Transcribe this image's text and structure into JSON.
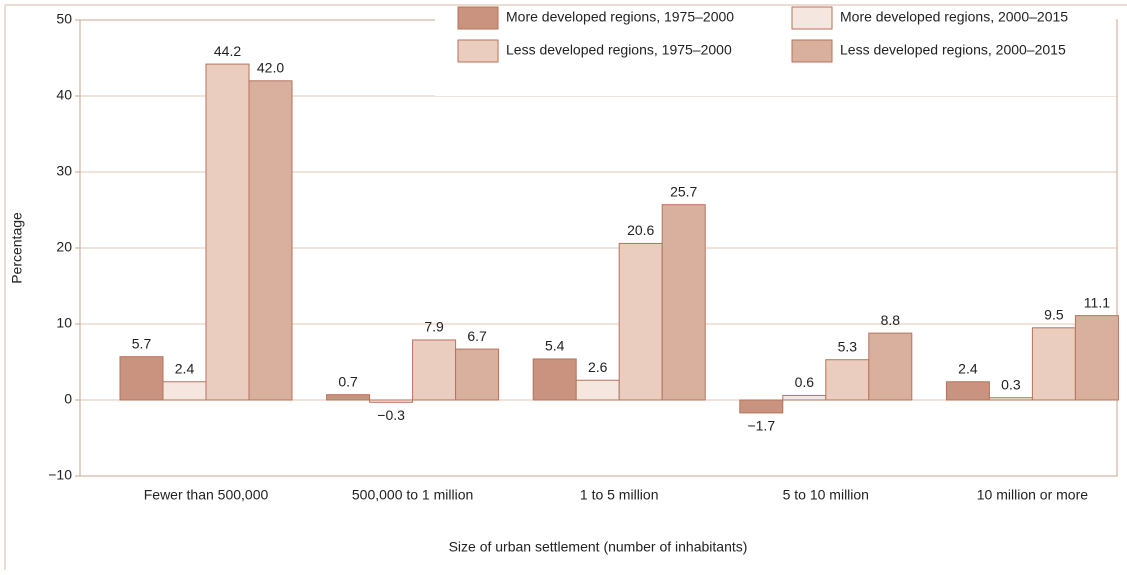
{
  "chart_data": {
    "type": "bar",
    "ylabel": "Percentage",
    "xlabel": "Size of urban settlement (number of inhabitants)",
    "categories": [
      "Fewer than 500,000",
      "500,000 to 1 million",
      "1 to 5 million",
      "5 to 10 million",
      "10 million or more"
    ],
    "series": [
      {
        "name": "More developed regions, 1975–2000",
        "color": "#c9937f",
        "values": [
          5.7,
          0.7,
          5.4,
          -1.7,
          2.4
        ],
        "value_labels": [
          "5.7",
          "0.7",
          "5.4",
          "−1.7",
          "2.4"
        ]
      },
      {
        "name": "More developed regions, 2000–2015",
        "color": "#f6e6e0",
        "values": [
          2.4,
          -0.3,
          2.6,
          0.6,
          0.3
        ],
        "value_labels": [
          "2.4",
          "−0.3",
          "2.6",
          "0.6",
          "0.3"
        ]
      },
      {
        "name": "Less developed regions, 1975–2000",
        "color": "#ebcdbf",
        "values": [
          44.2,
          7.9,
          20.6,
          5.3,
          9.5
        ],
        "value_labels": [
          "44.2",
          "7.9",
          "20.6",
          "5.3",
          "9.5"
        ]
      },
      {
        "name": "Less developed regions, 2000–2015",
        "color": "#d9b09e",
        "values": [
          42.0,
          6.7,
          25.7,
          8.8,
          11.1
        ],
        "value_labels": [
          "42.0",
          "6.7",
          "25.7",
          "8.8",
          "11.1"
        ]
      }
    ],
    "ylim": [
      -10,
      50
    ],
    "yticks": [
      {
        "value": -10,
        "label": "−10"
      },
      0,
      10,
      20,
      30,
      40,
      50
    ],
    "grid": true,
    "legend": "upper right"
  }
}
